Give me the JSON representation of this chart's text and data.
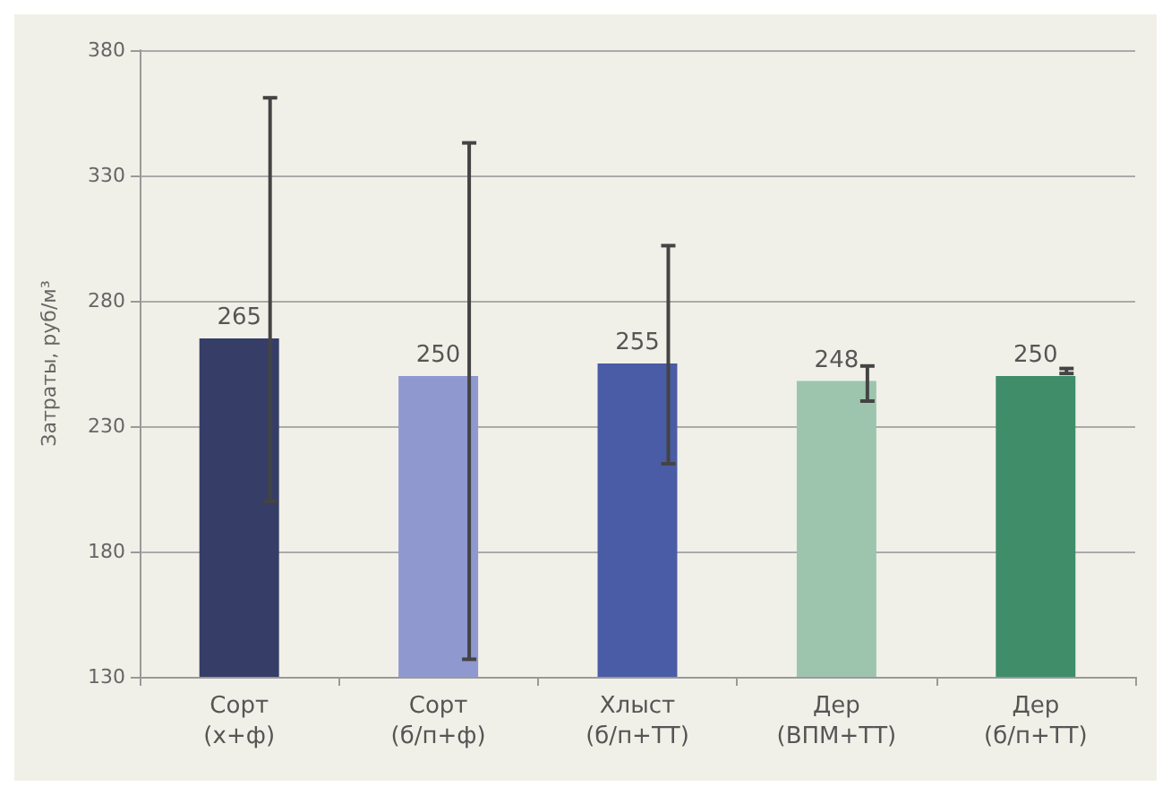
{
  "chart_data": {
    "type": "bar",
    "ylabel": "Затраты, руб/м³",
    "categories": [
      "Сорт\n(х+ф)",
      "Сорт\n(б/п+ф)",
      "Хлыст\n(б/п+ТТ)",
      "Дер\n(ВПМ+ТТ)",
      "Дер\n(б/п+ТТ)"
    ],
    "values": [
      265,
      250,
      255,
      248,
      250
    ],
    "colors": [
      "#363d66",
      "#8f98cf",
      "#4a5ca6",
      "#9dc5ae",
      "#3f8d69"
    ],
    "errors": [
      [
        200,
        361
      ],
      [
        137,
        343
      ],
      [
        215,
        302
      ],
      [
        240,
        254
      ],
      [
        251,
        253
      ]
    ],
    "data_labels": true,
    "ylim": [
      130,
      380
    ],
    "yticks": [
      130,
      180,
      230,
      280,
      330,
      380
    ],
    "grid": "y"
  }
}
